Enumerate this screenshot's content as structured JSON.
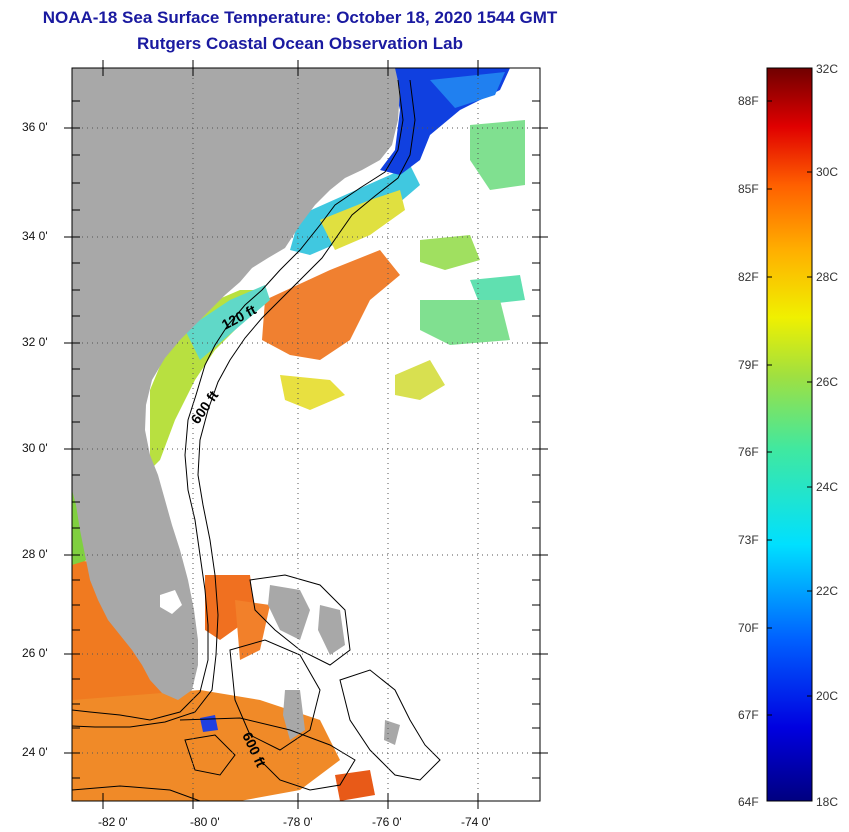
{
  "title": "NOAA-18 Sea Surface Temperature:  October 18, 2020 1544 GMT",
  "subtitle": "Rutgers Coastal Ocean Observation Lab",
  "lat_labels": [
    "36 0'",
    "34 0'",
    "32 0'",
    "30 0'",
    "28 0'",
    "26 0'",
    "24 0'"
  ],
  "lon_labels": [
    "-82 0'",
    "-80 0'",
    "-78 0'",
    "-76 0'",
    "-74 0'"
  ],
  "contour_labels": [
    "120 ft",
    "600 ft",
    "600 ft"
  ],
  "colorbar": {
    "fahrenheit": [
      "88F",
      "85F",
      "82F",
      "79F",
      "76F",
      "73F",
      "70F",
      "67F",
      "64F"
    ],
    "celsius": [
      "32C",
      "30C",
      "28C",
      "26C",
      "24C",
      "22C",
      "20C",
      "18C"
    ]
  },
  "colors": {
    "land": "#a8a8a8",
    "ocean_nodata": "#ffffff",
    "title": "#1a1aa0",
    "warm": "#f07818",
    "cool": "#1030e0"
  }
}
